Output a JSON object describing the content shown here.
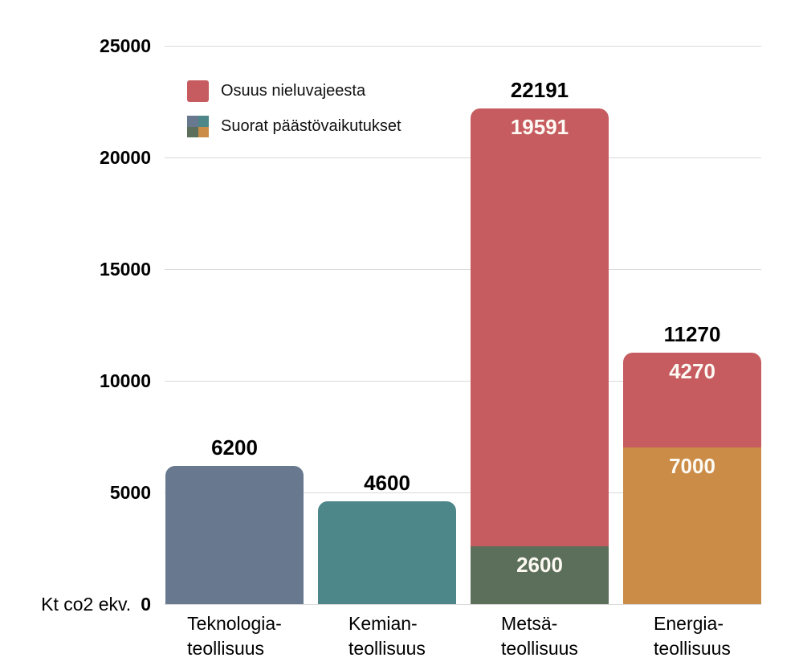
{
  "accent_colors": {
    "nieluvajeesta_red": "#c65c60",
    "teknologia_blue": "#68788e",
    "kemian_teal": "#4d878a",
    "metsa_green": "#5c6f5a",
    "energia_orange": "#cb8c47",
    "gridline_gray": "#dadada"
  },
  "legend": {
    "items": [
      {
        "label": "Osuus nieluvajeesta",
        "swatch": "single",
        "color": "#c65c60"
      },
      {
        "label": "Suorat päästövaikutukset",
        "swatch": "quad",
        "colors": [
          "#68788e",
          "#4d878a",
          "#5c6f5a",
          "#cb8c47"
        ]
      }
    ]
  },
  "chart_data": {
    "type": "bar",
    "stacked": true,
    "title": "",
    "xlabel": "",
    "ylabel": "Kt co2 ekv.",
    "unit_label": "Kt co2 ekv.",
    "grid": true,
    "legend_position": "top-left",
    "categories": [
      "Teknologia-teollisuus",
      "Kemian-teollisuus",
      "Metsä-teollisuus",
      "Energia-teollisuus"
    ],
    "category_label_lines": [
      [
        "Teknologia-",
        "teollisuus"
      ],
      [
        "Kemian-",
        "teollisuus"
      ],
      [
        "Metsä-",
        "teollisuus"
      ],
      [
        "Energia-",
        "teollisuus"
      ]
    ],
    "series": [
      {
        "name": "Suorat päästövaikutukset",
        "values": [
          6200,
          4600,
          2600,
          7000
        ],
        "colors": [
          "#68788e",
          "#4d878a",
          "#5c6f5a",
          "#cb8c47"
        ],
        "value_labels_shown": [
          false,
          false,
          true,
          true
        ]
      },
      {
        "name": "Osuus nieluvajeesta",
        "values": [
          0,
          0,
          19591,
          4270
        ],
        "color": "#c65c60",
        "value_labels_shown": [
          false,
          false,
          true,
          true
        ]
      }
    ],
    "totals": [
      6200,
      4600,
      22191,
      11270
    ],
    "y_axis": {
      "min": 0,
      "max": 25000,
      "tick_step": 5000,
      "ticks": [
        0,
        5000,
        10000,
        15000,
        20000,
        25000
      ]
    }
  }
}
